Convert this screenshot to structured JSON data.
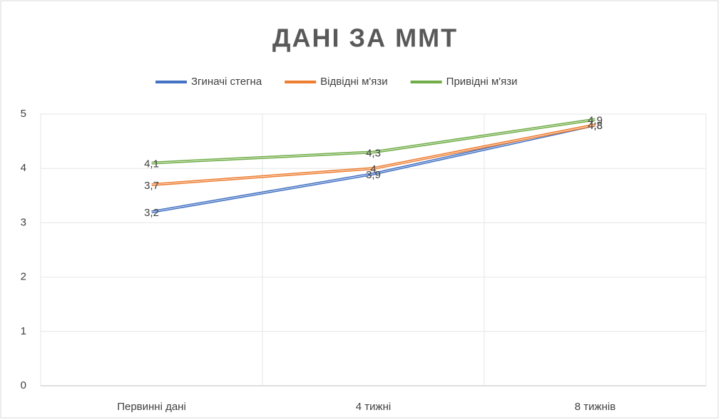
{
  "chart_data": {
    "type": "line",
    "title": "ДАНІ ЗА ММТ",
    "categories": [
      "Первинні дані",
      "4 тижні",
      "8 тижнів"
    ],
    "series": [
      {
        "name": "Згиначі стегна",
        "color": "#4472c4",
        "values": [
          3.2,
          3.9,
          4.8
        ],
        "value_labels": [
          "3,2",
          "3,9",
          "4,8"
        ]
      },
      {
        "name": "Відвідні м'язи",
        "color": "#ed7d31",
        "values": [
          3.7,
          4,
          4.8
        ],
        "value_labels": [
          "3,7",
          "4",
          "4,8"
        ]
      },
      {
        "name": "Привідні м'язи",
        "color": "#70ad47",
        "values": [
          4.1,
          4.3,
          4.9
        ],
        "value_labels": [
          "4,1",
          "4,3",
          "4,9"
        ]
      }
    ],
    "ylim": [
      0,
      5
    ],
    "yticks": [
      0,
      1,
      2,
      3,
      4,
      5
    ],
    "grid": true,
    "legend": "top"
  }
}
